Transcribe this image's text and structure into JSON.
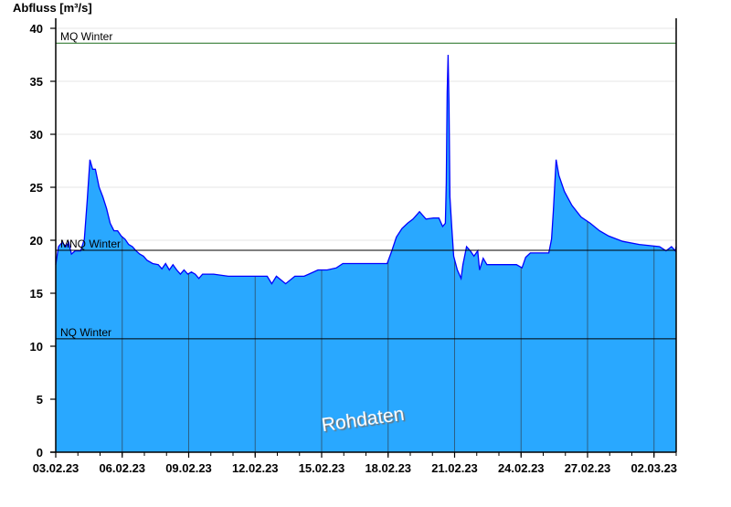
{
  "chart_data": {
    "type": "area",
    "ylabel": "Abfluss [m³/s]",
    "ylim": [
      0,
      40
    ],
    "yticks": [
      "0",
      "5",
      "10",
      "15",
      "20",
      "25",
      "30",
      "35",
      "40"
    ],
    "xlim": [
      "03.02.23 00:00",
      "03.03.23 00:00"
    ],
    "xticks": [
      {
        "label": "03.02.23",
        "date": "03.02.23 00:00"
      },
      {
        "label": "06.02.23",
        "date": "06.02.23 00:00"
      },
      {
        "label": "09.02.23",
        "date": "09.02.23 00:00"
      },
      {
        "label": "12.02.23",
        "date": "12.02.23 00:00"
      },
      {
        "label": "15.02.23",
        "date": "15.02.23 00:00"
      },
      {
        "label": "18.02.23",
        "date": "18.02.23 00:00"
      },
      {
        "label": "21.02.23",
        "date": "21.02.23 00:00"
      },
      {
        "label": "24.02.23",
        "date": "24.02.23 00:00"
      },
      {
        "label": "27.02.23",
        "date": "27.02.23 00:00"
      },
      {
        "label": "02.03.23",
        "date": "02.03.23 00:00"
      }
    ],
    "grid": true,
    "fill_color": "#29a8ff",
    "line_color": "#0000ff",
    "watermark": "Rohdaten",
    "reference_lines": [
      {
        "label": "MQ Winter",
        "value": 38.6,
        "color": "#1a6b1a"
      },
      {
        "label": "MNQ Winter",
        "value": 19.05,
        "color": "#000000"
      },
      {
        "label": "NQ Winter",
        "value": 10.7,
        "color": "#000000"
      }
    ],
    "series": [
      {
        "points": [
          [
            "03.02.23 00:00",
            17.7
          ],
          [
            "03.02.23 03:00",
            19.4
          ],
          [
            "03.02.23 07:00",
            19.8
          ],
          [
            "03.02.23 11:00",
            19.4
          ],
          [
            "03.02.23 14:00",
            19.8
          ],
          [
            "03.02.23 17:00",
            18.7
          ],
          [
            "03.02.23 21:00",
            19.0
          ],
          [
            "04.02.23 03:00",
            19.0
          ],
          [
            "04.02.23 07:00",
            20.1
          ],
          [
            "04.02.23 10:00",
            23.7
          ],
          [
            "04.02.23 13:00",
            27.6
          ],
          [
            "04.02.23 16:00",
            26.7
          ],
          [
            "04.02.23 19:00",
            26.7
          ],
          [
            "04.02.23 23:00",
            25.0
          ],
          [
            "05.02.23 03:00",
            24.1
          ],
          [
            "05.02.23 07:00",
            23.0
          ],
          [
            "05.02.23 11:00",
            21.6
          ],
          [
            "05.02.23 15:00",
            20.9
          ],
          [
            "05.02.23 19:00",
            20.9
          ],
          [
            "05.02.23 23:00",
            20.4
          ],
          [
            "06.02.23 03:00",
            20.1
          ],
          [
            "06.02.23 07:00",
            19.6
          ],
          [
            "06.02.23 11:00",
            19.4
          ],
          [
            "06.02.23 15:00",
            19.0
          ],
          [
            "06.02.23 19:00",
            18.7
          ],
          [
            "06.02.23 23:00",
            18.5
          ],
          [
            "07.02.23 03:00",
            18.1
          ],
          [
            "07.02.23 09:00",
            17.8
          ],
          [
            "07.02.23 15:00",
            17.7
          ],
          [
            "07.02.23 19:00",
            17.3
          ],
          [
            "07.02.23 23:00",
            17.8
          ],
          [
            "08.02.23 03:00",
            17.2
          ],
          [
            "08.02.23 07:00",
            17.7
          ],
          [
            "08.02.23 11:00",
            17.2
          ],
          [
            "08.02.23 15:00",
            16.8
          ],
          [
            "08.02.23 19:00",
            17.2
          ],
          [
            "08.02.23 23:00",
            16.8
          ],
          [
            "09.02.23 03:00",
            17.0
          ],
          [
            "09.02.23 07:00",
            16.8
          ],
          [
            "09.02.23 11:00",
            16.4
          ],
          [
            "09.02.23 15:00",
            16.8
          ],
          [
            "10.02.23 03:00",
            16.8
          ],
          [
            "10.02.23 19:00",
            16.6
          ],
          [
            "11.02.23 03:00",
            16.6
          ],
          [
            "12.02.23 13:00",
            16.6
          ],
          [
            "12.02.23 18:00",
            15.9
          ],
          [
            "12.02.23 23:00",
            16.6
          ],
          [
            "13.02.23 09:00",
            15.9
          ],
          [
            "13.02.23 19:00",
            16.6
          ],
          [
            "14.02.23 05:00",
            16.6
          ],
          [
            "14.02.23 10:00",
            16.8
          ],
          [
            "14.02.23 20:00",
            17.2
          ],
          [
            "15.02.23 06:00",
            17.2
          ],
          [
            "15.02.23 16:00",
            17.4
          ],
          [
            "15.02.23 23:00",
            17.8
          ],
          [
            "16.02.23 22:00",
            17.8
          ],
          [
            "17.02.23 23:00",
            17.8
          ],
          [
            "18.02.23 04:00",
            19.0
          ],
          [
            "18.02.23 09:00",
            20.3
          ],
          [
            "18.02.23 15:00",
            21.1
          ],
          [
            "18.02.23 21:00",
            21.6
          ],
          [
            "19.02.23 03:00",
            22.0
          ],
          [
            "19.02.23 10:00",
            22.7
          ],
          [
            "19.02.23 17:00",
            22.0
          ],
          [
            "20.02.23 01:00",
            22.1
          ],
          [
            "20.02.23 07:00",
            22.1
          ],
          [
            "20.02.23 11:00",
            21.3
          ],
          [
            "20.02.23 14:00",
            21.6
          ],
          [
            "20.02.23 15:00",
            25.4
          ],
          [
            "20.02.23 16:00",
            34.0
          ],
          [
            "20.02.23 17:00",
            37.5
          ],
          [
            "20.02.23 18:00",
            32.8
          ],
          [
            "20.02.23 19:00",
            24.1
          ],
          [
            "20.02.23 21:00",
            21.1
          ],
          [
            "20.02.23 23:00",
            18.5
          ],
          [
            "21.02.23 03:00",
            17.2
          ],
          [
            "21.02.23 07:00",
            16.4
          ],
          [
            "21.02.23 09:00",
            17.7
          ],
          [
            "21.02.23 13:00",
            19.4
          ],
          [
            "21.02.23 17:00",
            19.0
          ],
          [
            "21.02.23 21:00",
            18.5
          ],
          [
            "22.02.23 01:00",
            19.0
          ],
          [
            "22.02.23 03:00",
            17.2
          ],
          [
            "22.02.23 07:00",
            18.3
          ],
          [
            "22.02.23 11:00",
            17.7
          ],
          [
            "23.02.23 19:00",
            17.7
          ],
          [
            "24.02.23 01:00",
            17.4
          ],
          [
            "24.02.23 05:00",
            18.4
          ],
          [
            "24.02.23 10:00",
            18.8
          ],
          [
            "25.02.23 06:00",
            18.8
          ],
          [
            "25.02.23 09:00",
            20.1
          ],
          [
            "25.02.23 11:00",
            22.8
          ],
          [
            "25.02.23 14:00",
            27.6
          ],
          [
            "25.02.23 17:00",
            26.1
          ],
          [
            "25.02.23 23:00",
            24.6
          ],
          [
            "26.02.23 07:00",
            23.3
          ],
          [
            "26.02.23 17:00",
            22.2
          ],
          [
            "27.02.23 03:00",
            21.6
          ],
          [
            "27.02.23 13:00",
            20.9
          ],
          [
            "27.02.23 23:00",
            20.4
          ],
          [
            "28.02.23 14:00",
            19.9
          ],
          [
            "01.03.23 08:00",
            19.6
          ],
          [
            "02.03.23 06:00",
            19.4
          ],
          [
            "02.03.23 13:00",
            19.0
          ],
          [
            "02.03.23 19:00",
            19.4
          ],
          [
            "02.03.23 23:00",
            19.0
          ],
          [
            "03.03.23 00:00",
            19.4
          ]
        ]
      }
    ]
  }
}
